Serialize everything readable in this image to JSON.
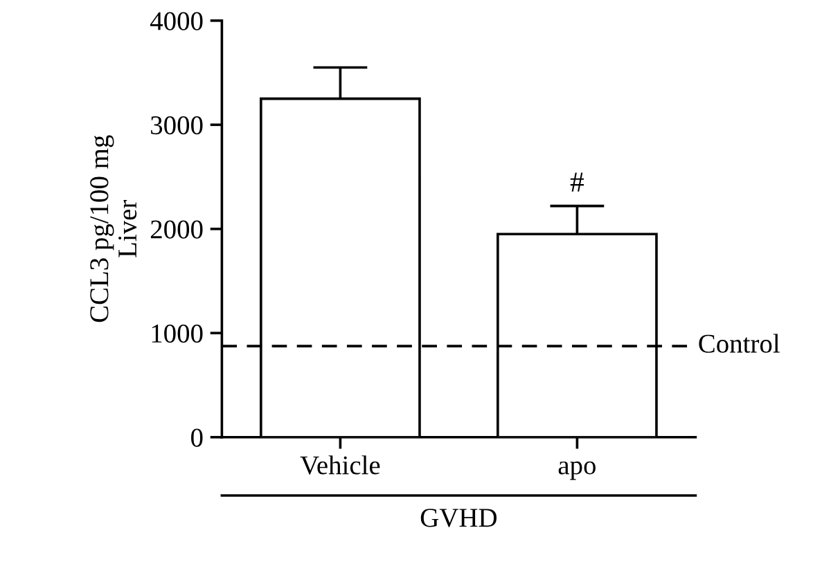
{
  "chart_data": {
    "type": "bar",
    "ylabel": "CCL3 pg/100 mg\nLiver",
    "categories": [
      "Vehicle",
      "apo"
    ],
    "values": [
      3250,
      1950
    ],
    "errors": [
      300,
      270
    ],
    "color": "#ffffff",
    "ylim": [
      0,
      4000
    ],
    "yticks": [
      0,
      1000,
      2000,
      3000,
      4000
    ],
    "ref_lines": [
      {
        "axis": "y",
        "value": 875,
        "label": "Control",
        "color": "#000000",
        "line_style": "dashed"
      }
    ],
    "annotations": [
      "#",
      "GVHD"
    ],
    "grid": false,
    "legend": false
  }
}
